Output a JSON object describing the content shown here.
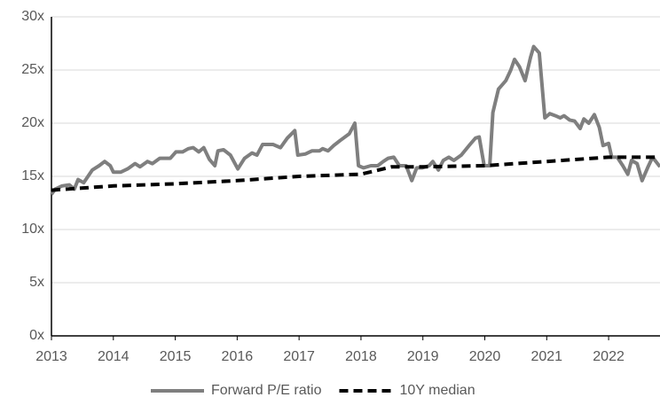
{
  "chart_data": {
    "type": "line",
    "xlim": [
      2013,
      2022.83
    ],
    "xticks": [
      2013,
      2014,
      2015,
      2016,
      2017,
      2018,
      2019,
      2020,
      2021,
      2022
    ],
    "ylim": [
      0,
      30
    ],
    "yticks": [
      {
        "value": 0,
        "label": "0x"
      },
      {
        "value": 5,
        "label": "5x"
      },
      {
        "value": 10,
        "label": "10x"
      },
      {
        "value": 15,
        "label": "15x"
      },
      {
        "value": 20,
        "label": "20x"
      },
      {
        "value": 25,
        "label": "25x"
      },
      {
        "value": 30,
        "label": "30x"
      }
    ],
    "grid": true,
    "legend": "bottom",
    "series": [
      {
        "name": "Forward P/E ratio",
        "color": "#7f7f7f",
        "style": "solid",
        "x": [
          2013.0,
          2013.06,
          2013.17,
          2013.29,
          2013.37,
          2013.43,
          2013.52,
          2013.66,
          2013.77,
          2013.86,
          2013.95,
          2014.0,
          2014.12,
          2014.23,
          2014.35,
          2014.43,
          2014.55,
          2014.63,
          2014.75,
          2014.92,
          2015.01,
          2015.12,
          2015.21,
          2015.29,
          2015.38,
          2015.46,
          2015.55,
          2015.64,
          2015.69,
          2015.78,
          2015.89,
          2016.01,
          2016.12,
          2016.24,
          2016.32,
          2016.41,
          2016.58,
          2016.7,
          2016.81,
          2016.93,
          2016.98,
          2017.1,
          2017.21,
          2017.33,
          2017.38,
          2017.47,
          2017.56,
          2017.67,
          2017.81,
          2017.9,
          2017.96,
          2018.04,
          2018.16,
          2018.27,
          2018.36,
          2018.44,
          2018.53,
          2018.62,
          2018.73,
          2018.82,
          2018.9,
          2018.99,
          2019.1,
          2019.16,
          2019.25,
          2019.33,
          2019.42,
          2019.5,
          2019.62,
          2019.76,
          2019.85,
          2019.91,
          2019.99,
          2020.08,
          2020.13,
          2020.22,
          2020.34,
          2020.42,
          2020.48,
          2020.56,
          2020.65,
          2020.74,
          2020.79,
          2020.88,
          2020.97,
          2021.05,
          2021.14,
          2021.22,
          2021.28,
          2021.37,
          2021.45,
          2021.54,
          2021.6,
          2021.68,
          2021.77,
          2021.85,
          2021.91,
          2022.0,
          2022.05,
          2022.14,
          2022.23,
          2022.31,
          2022.37,
          2022.46,
          2022.54,
          2022.63,
          2022.71,
          2022.83
        ],
        "values": [
          13.3,
          13.8,
          14.1,
          14.2,
          13.8,
          14.7,
          14.4,
          15.6,
          16.0,
          16.4,
          16.0,
          15.4,
          15.4,
          15.7,
          16.2,
          15.9,
          16.4,
          16.2,
          16.7,
          16.7,
          17.3,
          17.3,
          17.6,
          17.7,
          17.3,
          17.7,
          16.6,
          16.0,
          17.4,
          17.5,
          17.0,
          15.7,
          16.7,
          17.2,
          17.0,
          18.0,
          18.0,
          17.7,
          18.6,
          19.3,
          17.0,
          17.1,
          17.4,
          17.4,
          17.6,
          17.4,
          17.9,
          18.4,
          19.0,
          20.0,
          16.0,
          15.8,
          16.0,
          16.0,
          16.4,
          16.7,
          16.8,
          16.0,
          16.0,
          14.6,
          15.8,
          15.8,
          16.0,
          16.4,
          15.6,
          16.5,
          16.8,
          16.5,
          17.0,
          18.0,
          18.6,
          18.7,
          16.0,
          16.0,
          21.0,
          23.2,
          24.0,
          25.0,
          26.0,
          25.3,
          24.0,
          26.2,
          27.2,
          26.6,
          20.5,
          20.9,
          20.7,
          20.5,
          20.7,
          20.3,
          20.2,
          19.5,
          20.4,
          20.0,
          20.8,
          19.6,
          17.9,
          18.1,
          16.8,
          16.8,
          16.0,
          15.2,
          16.5,
          16.2,
          14.6,
          15.8,
          16.8,
          15.9
        ]
      },
      {
        "name": "10Y median",
        "color": "#000000",
        "style": "dashed",
        "x": [
          2013,
          2014,
          2015,
          2016,
          2016.5,
          2017,
          2018,
          2018.5,
          2019,
          2020,
          2021,
          2022,
          2022.83
        ],
        "values": [
          13.7,
          14.1,
          14.3,
          14.6,
          14.8,
          15.0,
          15.2,
          15.9,
          15.9,
          16.0,
          16.4,
          16.8,
          16.8
        ]
      }
    ]
  }
}
